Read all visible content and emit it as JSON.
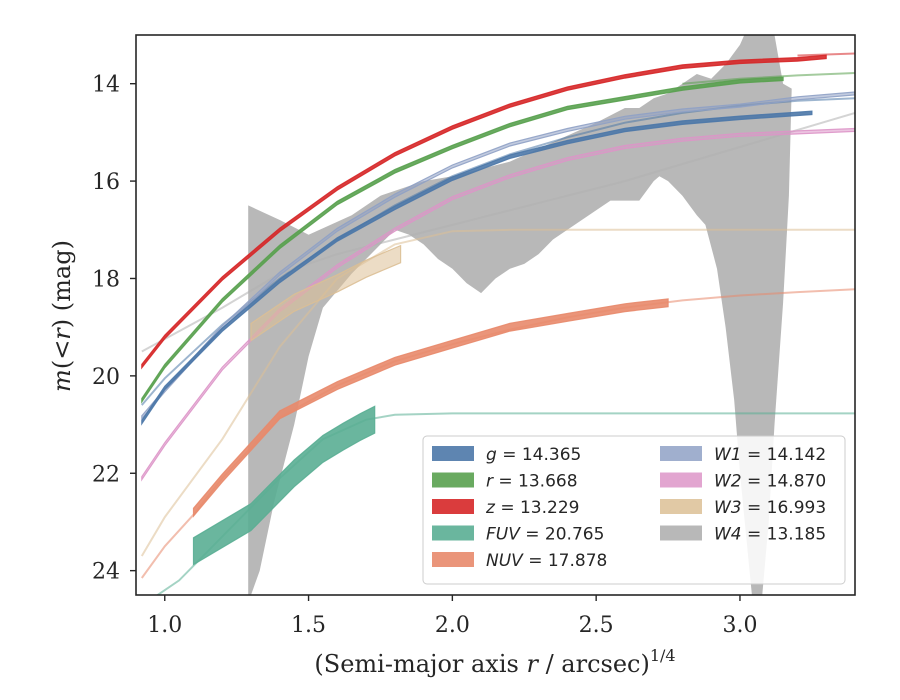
{
  "chart_data": {
    "type": "line",
    "title": "",
    "xlabel": "(Semi-major axis r / arcsec)",
    "xlabel_parts": {
      "before": "(Semi-major axis ",
      "var": "r",
      "after": " / arcsec)",
      "sup": "1/4"
    },
    "ylabel": "m(< r) (mag)",
    "ylabel_parts": {
      "var": "m",
      "mid": "(<",
      "var2": "r",
      "after": ") (mag)"
    },
    "xlim": [
      0.9,
      3.4
    ],
    "ylim": [
      24.5,
      13.0
    ],
    "y_inverted": true,
    "xticks": [
      1.0,
      1.5,
      2.0,
      2.5,
      3.0
    ],
    "xtick_labels": [
      "1.0",
      "1.5",
      "2.0",
      "2.5",
      "3.0"
    ],
    "yticks": [
      14,
      16,
      18,
      20,
      22,
      24
    ],
    "ytick_labels": [
      "14",
      "16",
      "18",
      "20",
      "22",
      "24"
    ],
    "grid": false,
    "legend_position": "lower-right",
    "legend_columns": 2,
    "series": [
      {
        "key": "g",
        "label_var": "g",
        "label_value": "14.365",
        "color": "#4c78a8",
        "band_x": [
          0.92,
          1.0,
          1.2,
          1.4,
          1.6,
          1.8,
          2.0,
          2.2,
          2.4,
          2.6,
          2.8,
          3.0,
          3.25
        ],
        "band_y": [
          20.95,
          20.25,
          19.05,
          18.05,
          17.2,
          16.55,
          15.95,
          15.5,
          15.2,
          14.95,
          14.8,
          14.7,
          14.6
        ],
        "band_w": 0.07,
        "ext_x": [
          0.92,
          1.0,
          1.2,
          1.4,
          1.6,
          1.8,
          2.0,
          2.2,
          2.4,
          2.6,
          2.8,
          3.0,
          3.2,
          3.4
        ],
        "ext_y": [
          20.6,
          20.05,
          18.95,
          18.0,
          17.2,
          16.5,
          15.9,
          15.45,
          15.1,
          14.8,
          14.6,
          14.45,
          14.35,
          14.3
        ]
      },
      {
        "key": "r",
        "label_var": "r",
        "label_value": "13.668",
        "color": "#59a14f",
        "band_x": [
          0.92,
          1.0,
          1.2,
          1.4,
          1.6,
          1.8,
          2.0,
          2.2,
          2.4,
          2.6,
          2.8,
          3.0,
          3.15
        ],
        "band_y": [
          20.5,
          19.8,
          18.45,
          17.35,
          16.45,
          15.8,
          15.3,
          14.85,
          14.5,
          14.3,
          14.1,
          13.95,
          13.9
        ],
        "band_w": 0.07,
        "ext_x": [
          2.8,
          3.0,
          3.2,
          3.4
        ],
        "ext_y": [
          14.0,
          13.9,
          13.83,
          13.78
        ]
      },
      {
        "key": "z",
        "label_var": "z",
        "label_value": "13.229",
        "color": "#d62728",
        "band_x": [
          0.92,
          1.0,
          1.2,
          1.4,
          1.6,
          1.8,
          2.0,
          2.2,
          2.4,
          2.6,
          2.8,
          3.0,
          3.2,
          3.3
        ],
        "band_y": [
          19.8,
          19.2,
          18.0,
          17.0,
          16.15,
          15.45,
          14.9,
          14.45,
          14.1,
          13.85,
          13.65,
          13.55,
          13.5,
          13.45
        ],
        "band_w": 0.07,
        "ext_x": [
          3.2,
          3.4
        ],
        "ext_y": [
          13.42,
          13.38
        ]
      },
      {
        "key": "FUV",
        "label_var": "FUV",
        "label_value": "20.765",
        "color": "#5aae94",
        "band_x": [
          1.1,
          1.3,
          1.45,
          1.55,
          1.62,
          1.68,
          1.73
        ],
        "band_y": [
          23.6,
          22.9,
          22.0,
          21.5,
          21.25,
          21.05,
          20.9
        ],
        "band_w": 0.55,
        "ext_x": [
          0.95,
          1.05,
          1.2,
          1.4,
          1.55,
          1.7,
          1.8,
          2.0,
          2.5,
          3.0,
          3.4
        ],
        "ext_y": [
          24.6,
          24.2,
          23.3,
          22.1,
          21.3,
          20.9,
          20.8,
          20.77,
          20.77,
          20.77,
          20.77
        ]
      },
      {
        "key": "NUV",
        "label_var": "NUV",
        "label_value": "17.878",
        "color": "#e8896b",
        "band_x": [
          1.1,
          1.2,
          1.4,
          1.6,
          1.8,
          2.0,
          2.2,
          2.4,
          2.6,
          2.75
        ],
        "band_y": [
          22.8,
          22.1,
          20.8,
          20.2,
          19.7,
          19.35,
          19.0,
          18.8,
          18.6,
          18.5
        ],
        "band_w": 0.16,
        "ext_x": [
          0.92,
          1.0,
          1.1,
          1.2,
          1.4,
          1.6,
          1.8,
          2.0,
          2.2,
          2.4,
          2.6,
          2.8,
          3.0,
          3.2,
          3.4
        ],
        "ext_y": [
          24.15,
          23.5,
          22.85,
          22.1,
          20.85,
          20.2,
          19.7,
          19.35,
          19.05,
          18.8,
          18.6,
          18.45,
          18.35,
          18.28,
          18.22
        ]
      },
      {
        "key": "W1",
        "label_var": "W1",
        "label_value": "14.142",
        "color": "#8fa1c5",
        "band_x": [
          0.92,
          1.0,
          1.2,
          1.4,
          1.6,
          1.8,
          2.0,
          2.2,
          2.4,
          2.6,
          2.8,
          3.0,
          3.2,
          3.4
        ],
        "band_y": [
          20.85,
          20.3,
          19.0,
          17.9,
          17.0,
          16.3,
          15.7,
          15.25,
          14.95,
          14.7,
          14.55,
          14.45,
          14.3,
          14.2
        ],
        "band_w": 0.06,
        "ext_x": [],
        "ext_y": []
      },
      {
        "key": "W2",
        "label_var": "W2",
        "label_value": "14.870",
        "color": "#dd95c8",
        "band_x": [
          0.92,
          1.0,
          1.2,
          1.4,
          1.6,
          1.8,
          2.0,
          2.2,
          2.4,
          2.6,
          2.8,
          3.0,
          3.2,
          3.4
        ],
        "band_y": [
          22.1,
          21.4,
          19.85,
          18.65,
          17.75,
          17.0,
          16.35,
          15.9,
          15.55,
          15.3,
          15.15,
          15.05,
          15.0,
          14.95
        ],
        "band_w": 0.06,
        "ext_x": [],
        "ext_y": []
      },
      {
        "key": "W3",
        "label_var": "W3",
        "label_value": "16.993",
        "color": "#dcbf95",
        "band_x": [
          1.3,
          1.45,
          1.6,
          1.7,
          1.82
        ],
        "band_y": [
          19.1,
          18.5,
          18.1,
          17.8,
          17.5
        ],
        "band_w": 0.35,
        "ext_x": [
          0.92,
          1.0,
          1.2,
          1.4,
          1.6,
          1.8,
          2.0,
          2.2,
          2.5,
          3.0,
          3.4
        ],
        "ext_y": [
          23.7,
          22.9,
          21.3,
          19.4,
          18.0,
          17.3,
          17.03,
          17.0,
          17.0,
          17.0,
          17.0
        ]
      },
      {
        "key": "W4",
        "label_var": "W4",
        "label_value": "13.185",
        "color": "#b0b0b0",
        "band_x": [],
        "band_y": [],
        "band_w": 0,
        "ext_x": [
          0.92,
          1.2,
          1.4,
          1.6,
          1.8,
          2.0,
          2.2,
          2.4,
          2.6,
          2.8,
          3.0,
          3.2,
          3.4
        ],
        "ext_y": [
          19.5,
          18.6,
          17.9,
          17.5,
          17.2,
          16.9,
          16.6,
          16.3,
          16.0,
          15.65,
          15.3,
          14.95,
          14.6
        ]
      }
    ],
    "w4_band": {
      "upper_x": [
        1.29,
        1.4,
        1.5,
        1.65,
        1.75,
        1.9,
        2.0,
        2.2,
        2.35,
        2.5,
        2.6,
        2.65,
        2.7,
        2.75,
        2.8,
        2.85,
        2.9,
        2.95,
        3.0,
        3.03,
        3.1,
        3.12,
        3.15,
        3.18
      ],
      "upper_y": [
        16.5,
        16.8,
        17.1,
        16.7,
        16.3,
        16.0,
        15.9,
        15.6,
        15.2,
        14.8,
        14.5,
        14.5,
        14.3,
        14.2,
        14.0,
        13.8,
        13.9,
        13.6,
        13.2,
        12.8,
        12.8,
        13.0,
        14.0,
        14.1
      ],
      "lower_x": [
        3.18,
        3.17,
        3.15,
        3.12,
        3.1,
        3.07,
        3.05,
        3.0,
        2.98,
        2.95,
        2.92,
        2.88,
        2.85,
        2.8,
        2.75,
        2.72,
        2.7,
        2.65,
        2.6,
        2.55,
        2.5,
        2.4,
        2.35,
        2.3,
        2.25,
        2.2,
        2.15,
        2.1,
        2.05,
        2.0,
        1.95,
        1.9,
        1.85,
        1.8,
        1.75,
        1.7,
        1.65,
        1.55,
        1.5,
        1.45,
        1.38,
        1.33,
        1.3,
        1.29
      ],
      "lower_y": [
        14.1,
        16.3,
        18.5,
        21.0,
        23.0,
        25.0,
        25.0,
        22.0,
        20.5,
        19.0,
        17.8,
        16.9,
        16.7,
        16.3,
        16.0,
        15.9,
        16.0,
        16.4,
        16.4,
        16.4,
        16.6,
        17.0,
        17.2,
        17.5,
        17.7,
        17.8,
        18.0,
        18.3,
        18.1,
        17.8,
        17.6,
        17.3,
        17.1,
        17.0,
        17.3,
        17.6,
        17.9,
        18.6,
        19.6,
        21.0,
        22.6,
        24.0,
        24.5,
        24.5
      ]
    }
  }
}
